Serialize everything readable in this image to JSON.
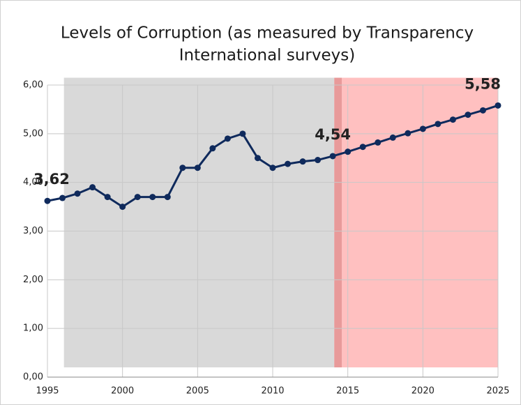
{
  "chart_data": {
    "type": "line",
    "title": [
      "Levels of Corruption (as measured by Transparency",
      "International surveys)"
    ],
    "x": [
      1995,
      1996,
      1997,
      1998,
      1999,
      2000,
      2001,
      2002,
      2003,
      2004,
      2005,
      2006,
      2007,
      2008,
      2009,
      2010,
      2011,
      2012,
      2013,
      2014,
      2015,
      2016,
      2017,
      2018,
      2019,
      2020,
      2021,
      2022,
      2023,
      2024,
      2025
    ],
    "series": [
      {
        "color": "#0f2a5c",
        "values": [
          3.62,
          3.68,
          3.77,
          3.9,
          3.7,
          3.5,
          3.7,
          3.7,
          3.7,
          4.3,
          4.3,
          4.7,
          4.9,
          5.0,
          4.5,
          4.3,
          4.38,
          4.43,
          4.46,
          4.54,
          4.63,
          4.73,
          4.82,
          4.92,
          5.01,
          5.1,
          5.2,
          5.29,
          5.39,
          5.48,
          5.58
        ],
        "value_labels": [
          "3,62",
          null,
          null,
          null,
          null,
          null,
          null,
          null,
          null,
          null,
          null,
          null,
          null,
          null,
          null,
          null,
          null,
          null,
          null,
          "4,54",
          null,
          null,
          null,
          null,
          null,
          null,
          null,
          null,
          null,
          null,
          "5,58"
        ],
        "value_label_colors": [
          "#0b1f44",
          null,
          null,
          null,
          null,
          null,
          null,
          null,
          null,
          null,
          null,
          null,
          null,
          null,
          null,
          null,
          null,
          null,
          null,
          "#0b1f44",
          null,
          null,
          null,
          null,
          null,
          null,
          null,
          null,
          null,
          null,
          "#8b0000"
        ]
      }
    ],
    "xlim": [
      1995,
      2025
    ],
    "ylim": [
      0,
      6
    ],
    "xticks": [
      1995,
      2000,
      2005,
      2010,
      2015,
      2020,
      2025
    ],
    "yticks": [
      {
        "value": 0,
        "label": "0,00"
      },
      {
        "value": 1,
        "label": "1,00"
      },
      {
        "value": 2,
        "label": "2,00"
      },
      {
        "value": 3,
        "label": "3,00"
      },
      {
        "value": 4,
        "label": "4,00"
      },
      {
        "value": 5,
        "label": "5,00"
      },
      {
        "value": 6,
        "label": "6,00"
      }
    ],
    "grid": true,
    "shaded_regions": [
      {
        "from": 1996.1,
        "to": 2014.1,
        "ymin": 0.2,
        "ymax": 6.15,
        "color": "#d9d9d9"
      },
      {
        "from": 2014.1,
        "to": 2025,
        "ymin": 0.2,
        "ymax": 6.15,
        "color": "#ffc0c0"
      },
      {
        "from": 2014.1,
        "to": 2014.6,
        "ymin": 0.2,
        "ymax": 6.15,
        "color": "#e89a9a"
      }
    ]
  }
}
